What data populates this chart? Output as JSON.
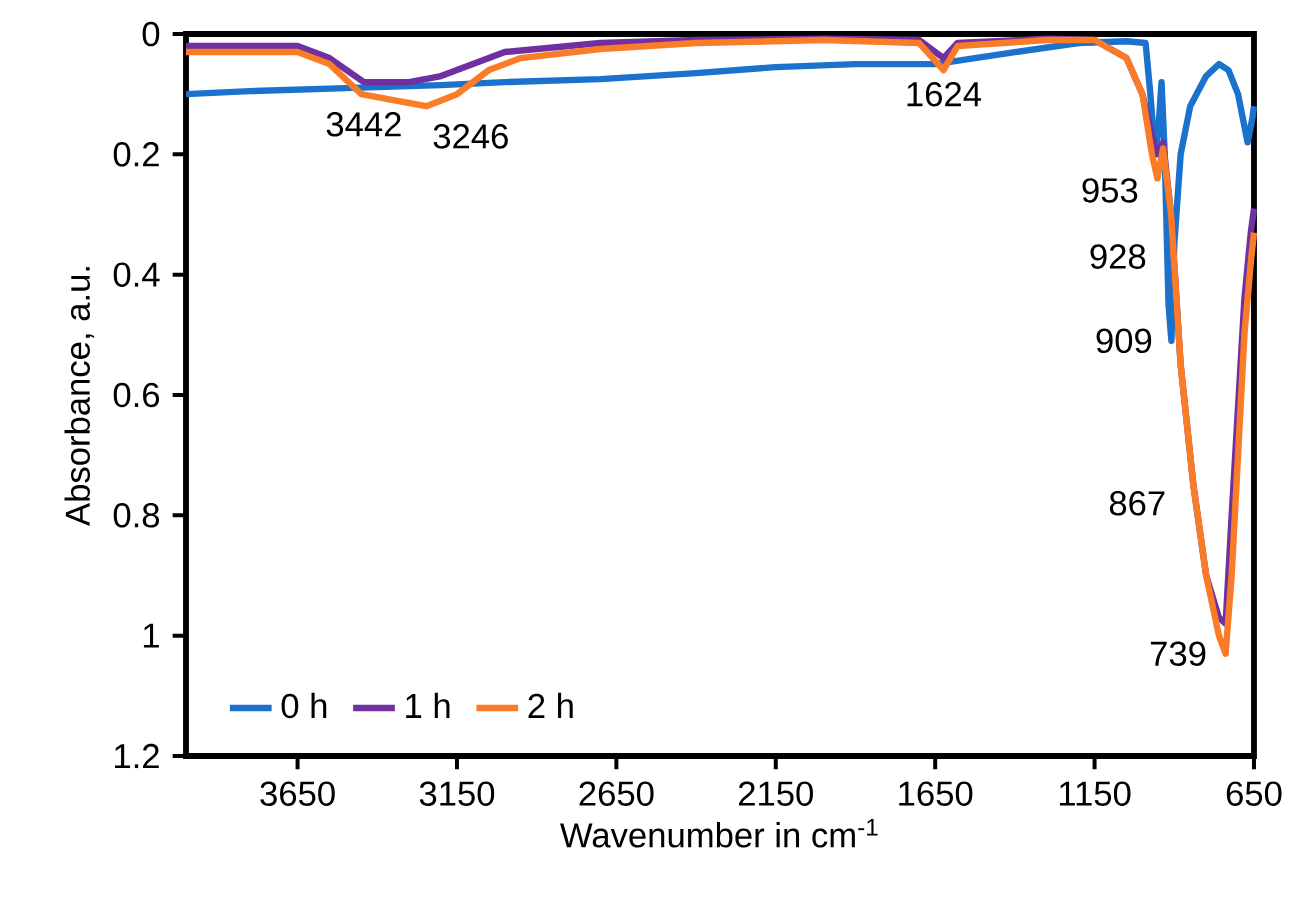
{
  "chart_data": {
    "type": "line",
    "xlabel": "Wavenumber in cm$^{-1}$",
    "ylabel": "Absorbance, a.u.",
    "xlim": [
      4000,
      650
    ],
    "ylim": [
      1.2,
      0
    ],
    "xticks": [
      3650,
      3150,
      2650,
      2150,
      1650,
      1150,
      650
    ],
    "yticks": [
      0,
      0.2,
      0.4,
      0.6,
      0.8,
      1,
      1.2
    ],
    "grid": false,
    "legend": "bottom left",
    "line_style": "solid",
    "marker": "none",
    "series": [
      {
        "name": "0 h",
        "color": "#1b72cc",
        "x": [
          4000,
          3800,
          3500,
          3200,
          3000,
          2700,
          2400,
          2150,
          1900,
          1650,
          1400,
          1200,
          1050,
          990,
          975,
          960,
          950,
          940,
          930,
          918,
          909,
          900,
          880,
          850,
          800,
          760,
          730,
          700,
          670,
          655,
          650
        ],
        "values": [
          0.1,
          0.095,
          0.09,
          0.085,
          0.08,
          0.075,
          0.065,
          0.055,
          0.05,
          0.05,
          0.03,
          0.015,
          0.012,
          0.015,
          0.1,
          0.2,
          0.16,
          0.08,
          0.2,
          0.45,
          0.51,
          0.35,
          0.2,
          0.12,
          0.07,
          0.05,
          0.06,
          0.1,
          0.18,
          0.14,
          0.12
        ]
      },
      {
        "name": "1 h",
        "color": "#7030a0",
        "x": [
          4000,
          3650,
          3550,
          3442,
          3300,
          3200,
          3100,
          3000,
          2700,
          2400,
          2000,
          1700,
          1624,
          1580,
          1300,
          1150,
          1050,
          1000,
          970,
          953,
          935,
          910,
          880,
          840,
          800,
          760,
          739,
          720,
          700,
          680,
          660,
          650
        ],
        "values": [
          0.02,
          0.02,
          0.04,
          0.08,
          0.08,
          0.07,
          0.05,
          0.03,
          0.015,
          0.01,
          0.008,
          0.01,
          0.04,
          0.015,
          0.008,
          0.01,
          0.04,
          0.1,
          0.17,
          0.2,
          0.18,
          0.3,
          0.55,
          0.75,
          0.9,
          0.97,
          0.98,
          0.8,
          0.62,
          0.44,
          0.33,
          0.29
        ]
      },
      {
        "name": "2 h",
        "color": "#fb7c26",
        "x": [
          4000,
          3650,
          3550,
          3450,
          3350,
          3246,
          3150,
          3050,
          2950,
          2700,
          2400,
          2000,
          1700,
          1624,
          1580,
          1300,
          1150,
          1050,
          1000,
          970,
          953,
          935,
          910,
          880,
          840,
          800,
          760,
          739,
          720,
          700,
          680,
          660,
          650
        ],
        "values": [
          0.03,
          0.03,
          0.05,
          0.1,
          0.11,
          0.12,
          0.1,
          0.06,
          0.04,
          0.025,
          0.015,
          0.01,
          0.015,
          0.06,
          0.02,
          0.01,
          0.01,
          0.04,
          0.1,
          0.2,
          0.24,
          0.19,
          0.3,
          0.55,
          0.75,
          0.9,
          1.0,
          1.03,
          0.9,
          0.7,
          0.5,
          0.38,
          0.33
        ]
      }
    ],
    "annotations": [
      {
        "text": "3442",
        "x": 3442,
        "y": 0.12
      },
      {
        "text": "3246",
        "x": 3246,
        "y": 0.14
      },
      {
        "text": "1624",
        "x": 1624,
        "y": 0.07
      },
      {
        "text": "953",
        "x": 953,
        "y": 0.26
      },
      {
        "text": "928",
        "x": 928,
        "y": 0.37
      },
      {
        "text": "909",
        "x": 909,
        "y": 0.51
      },
      {
        "text": "867",
        "x": 867,
        "y": 0.78
      },
      {
        "text": "739",
        "x": 739,
        "y": 1.03
      }
    ]
  }
}
